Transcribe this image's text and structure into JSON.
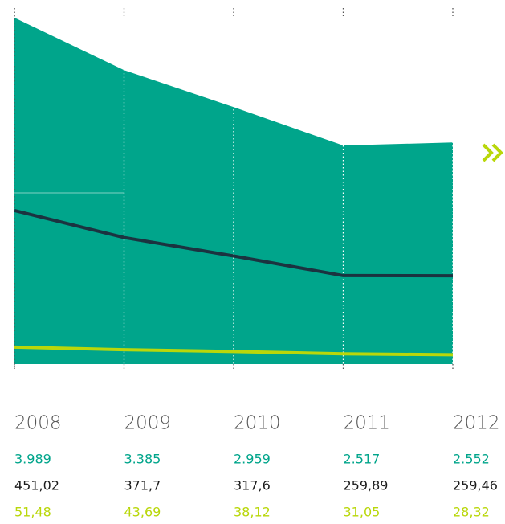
{
  "chart_data": {
    "type": "area-line",
    "categories": [
      "2008",
      "2009",
      "2010",
      "2011",
      "2012"
    ],
    "series": [
      {
        "color": "#00a58b",
        "values": [
          3989,
          3385,
          2959,
          2517,
          2552
        ],
        "value_labels": [
          "3.989",
          "3.385",
          "2.959",
          "2.517",
          "2.552"
        ]
      },
      {
        "color": "#1b3340",
        "values": [
          451.02,
          371.7,
          317.6,
          259.89,
          259.46
        ],
        "value_labels": [
          "451,02",
          "371,7",
          "317,6",
          "259,89",
          "259,46"
        ]
      },
      {
        "color": "#b9d70a",
        "values": [
          51.48,
          43.69,
          38.12,
          31.05,
          28.32
        ],
        "value_labels": [
          "51,48",
          "43,69",
          "38,12",
          "31,05",
          "28,32"
        ]
      }
    ]
  }
}
